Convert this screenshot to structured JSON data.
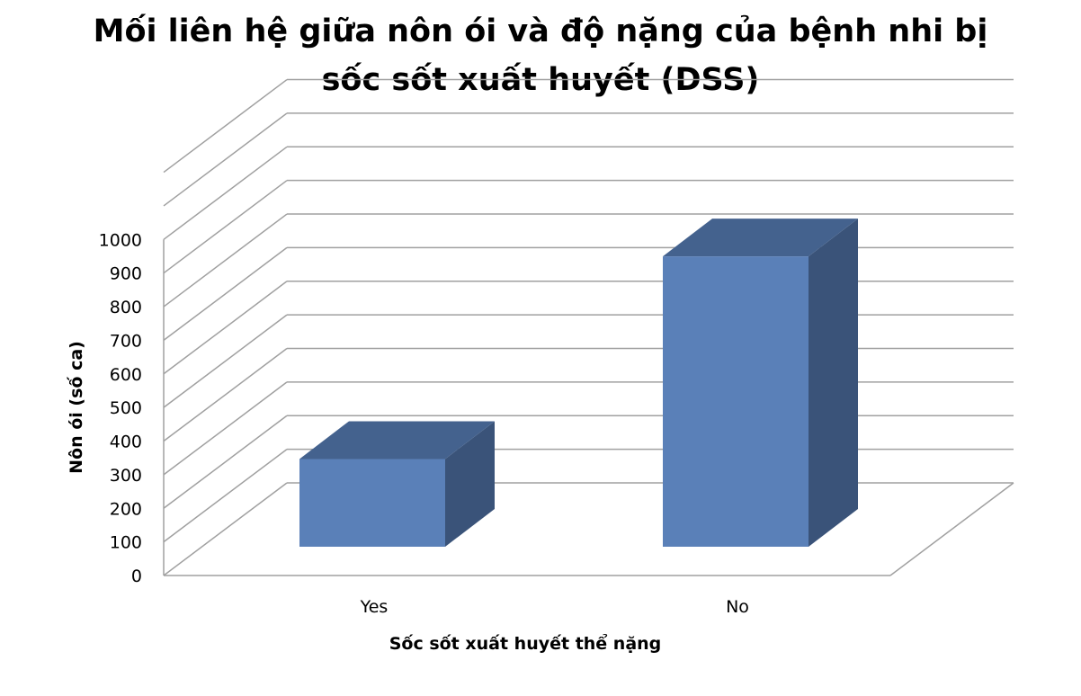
{
  "chart_data": {
    "type": "bar",
    "title_lines": [
      "Mối liên hệ giữa nôn ói và độ nặng của bệnh nhi bị",
      "sốc sốt xuất huyết (DSS)"
    ],
    "categories": [
      "Yes",
      "No"
    ],
    "values": [
      290,
      960
    ],
    "xlabel": "Sốc sốt xuất huyết thể nặng",
    "ylabel": "Nôn ói (số ca)",
    "ylim": [
      0,
      1000
    ],
    "yticks": [
      "0",
      "100",
      "200",
      "300",
      "400",
      "500",
      "600",
      "700",
      "800",
      "900",
      "1000"
    ],
    "style": "3d-column",
    "grid": true,
    "legend": "none",
    "colors": {
      "front": "#5a80b8",
      "top": "#44628e",
      "side": "#3a5379",
      "grid": "#a0a0a0"
    }
  }
}
